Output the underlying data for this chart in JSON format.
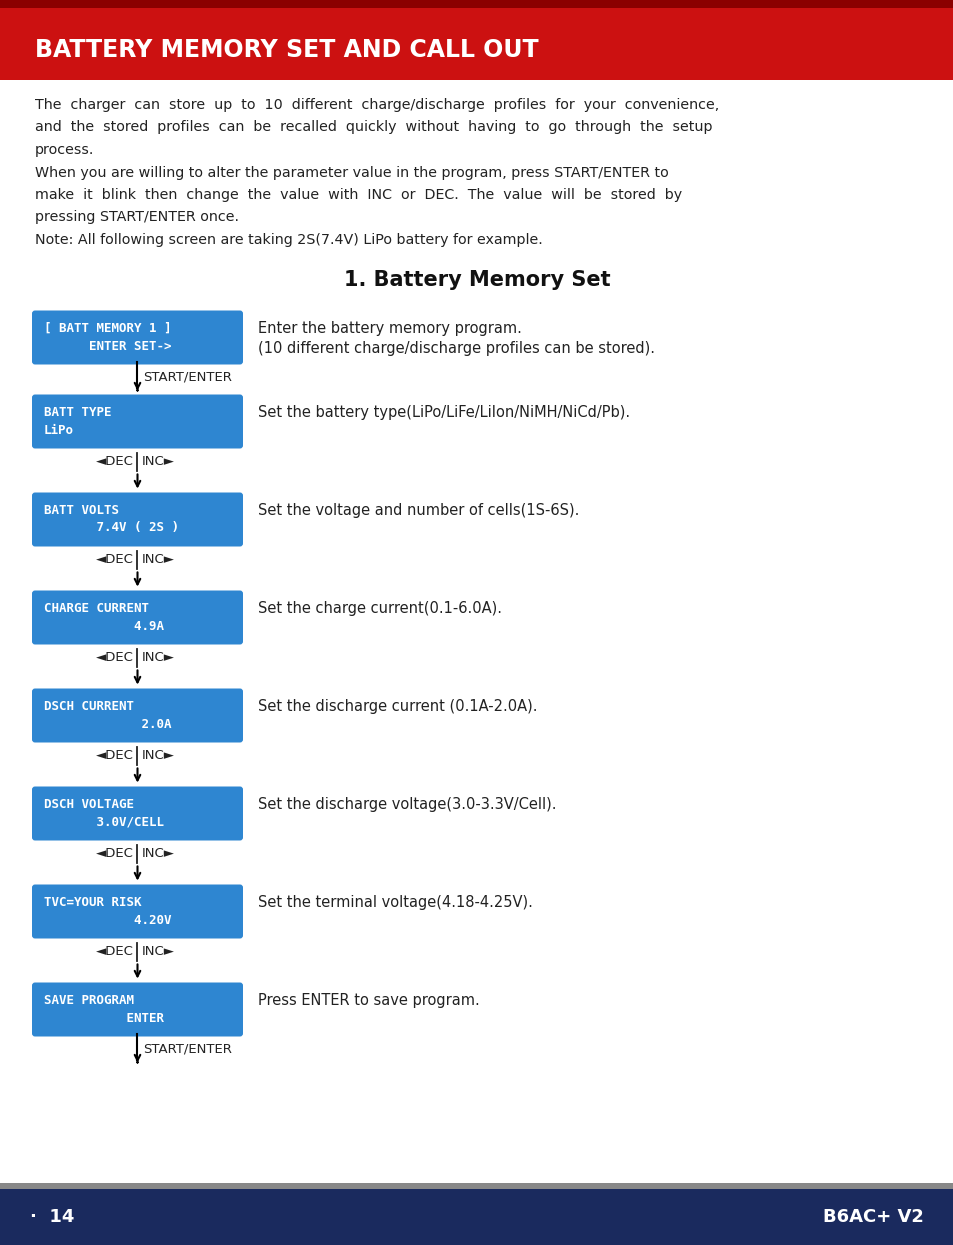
{
  "header_title": "BATTERY MEMORY SET AND CALL OUT",
  "header_bg_color": "#cc1111",
  "header_dark_color": "#8b0000",
  "header_text_color": "#ffffff",
  "body_bg_color": "#ffffff",
  "footer_bg_color": "#1a2a5e",
  "footer_separator_color": "#888888",
  "footer_text_color": "#ffffff",
  "footer_left": "·  14",
  "footer_right": "B6AC+ V2",
  "intro_lines": [
    "The  charger  can  store  up  to  10  different  charge/discharge  profiles  for  your  convenience,",
    "and  the  stored  profiles  can  be  recalled  quickly  without  having  to  go  through  the  setup",
    "process.",
    "When you are willing to alter the parameter value in the program, press START/ENTER to",
    "make  it  blink  then  change  the  value  with  INC  or  DEC.  The  value  will  be  stored  by",
    "pressing START/ENTER once.",
    "Note: All following screen are taking 2S(7.4V) LiPo battery for example."
  ],
  "section_title": "1. Battery Memory Set",
  "box_bg_color": "#2e86d1",
  "box_text_color": "#ffffff",
  "boxes": [
    {
      "line1": "[ BATT MEMORY 1 ]",
      "line2": "      ENTER SET->",
      "description": "Enter the battery memory program.\n(10 different charge/discharge profiles can be stored).",
      "connector_type": "start_arrow"
    },
    {
      "line1": "BATT TYPE",
      "line2": "LiPo",
      "description": "Set the battery type(LiPo/LiFe/LiIon/NiMH/NiCd/Pb).",
      "connector_type": "dec_inc"
    },
    {
      "line1": "BATT VOLTS",
      "line2": "       7.4V ( 2S )",
      "description": "Set the voltage and number of cells(1S-6S).",
      "connector_type": "dec_inc"
    },
    {
      "line1": "CHARGE CURRENT",
      "line2": "            4.9A",
      "description": "Set the charge current(0.1-6.0A).",
      "connector_type": "dec_inc"
    },
    {
      "line1": "DSCH CURRENT",
      "line2": "             2.0A",
      "description": "Set the discharge current (0.1A-2.0A).",
      "connector_type": "dec_inc"
    },
    {
      "line1": "DSCH VOLTAGE",
      "line2": "       3.0V/CELL",
      "description": "Set the discharge voltage(3.0-3.3V/Cell).",
      "connector_type": "dec_inc"
    },
    {
      "line1": "TVC=YOUR RISK",
      "line2": "            4.20V",
      "description": "Set the terminal voltage(4.18-4.25V).",
      "connector_type": "dec_inc"
    },
    {
      "line1": "SAVE PROGRAM",
      "line2": "           ENTER",
      "description": "Press ENTER to save program.",
      "connector_type": "end_arrow"
    }
  ]
}
